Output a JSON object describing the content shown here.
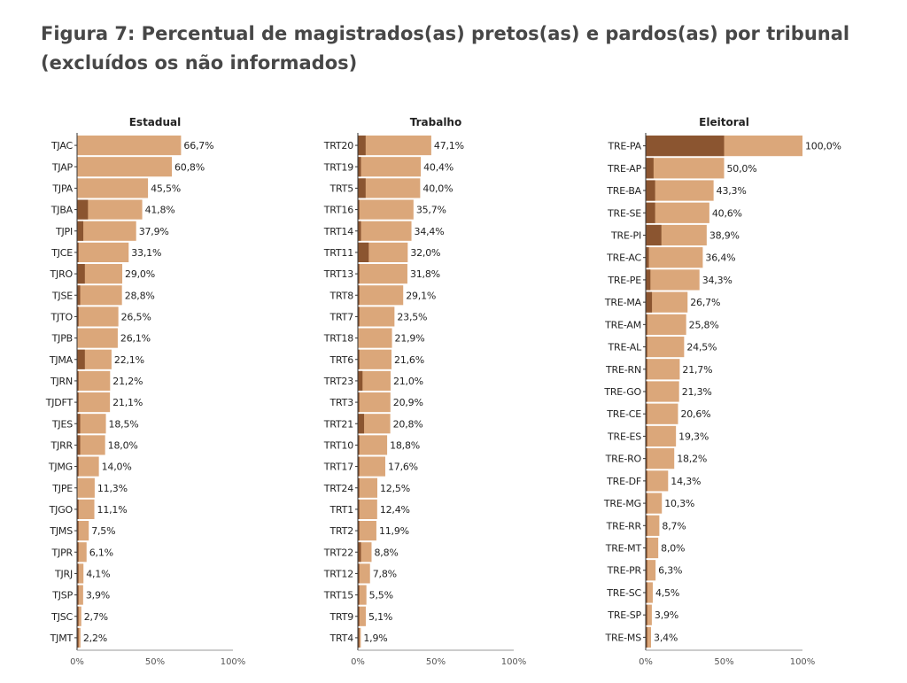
{
  "title": "Figura 7: Percentual de magistrados(as) pretos(as) e pardos(as) por tribunal (excluídos os não informados)",
  "colors": {
    "light": "#dba77a",
    "dark": "#8b5530",
    "axis": "#333333"
  },
  "chart_data": [
    {
      "type": "bar",
      "orientation": "horizontal",
      "title": "Estadual",
      "categories": [
        "TJAC",
        "TJAP",
        "TJPA",
        "TJBA",
        "TJPI",
        "TJCE",
        "TJRO",
        "TJSE",
        "TJTO",
        "TJPB",
        "TJMA",
        "TJRN",
        "TJDFT",
        "TJES",
        "TJRR",
        "TJMG",
        "TJPE",
        "TJGO",
        "TJMS",
        "TJPR",
        "TJRJ",
        "TJSP",
        "TJSC",
        "TJMT"
      ],
      "values": [
        66.7,
        60.8,
        45.5,
        41.8,
        37.9,
        33.1,
        29.0,
        28.8,
        26.5,
        26.1,
        22.1,
        21.2,
        21.1,
        18.5,
        18.0,
        14.0,
        11.3,
        11.1,
        7.5,
        6.1,
        4.1,
        3.9,
        2.7,
        2.2
      ],
      "value_labels": [
        "66,7%",
        "60,8%",
        "45,5%",
        "41,8%",
        "37,9%",
        "33,1%",
        "29,0%",
        "28,8%",
        "26,5%",
        "26,1%",
        "22,1%",
        "21,2%",
        "21,1%",
        "18,5%",
        "18,0%",
        "14,0%",
        "11,3%",
        "11,1%",
        "7,5%",
        "6,1%",
        "4,1%",
        "3,9%",
        "2,7%",
        "2,2%"
      ],
      "dark_values": [
        0,
        0,
        0,
        7,
        4,
        1,
        5,
        2,
        1,
        0,
        5,
        1,
        1,
        2,
        2,
        1,
        0,
        1,
        1,
        1,
        1,
        1,
        1,
        1
      ],
      "xlim": [
        0,
        100
      ],
      "xticks": [
        "0%",
        "50%",
        "100%"
      ]
    },
    {
      "type": "bar",
      "orientation": "horizontal",
      "title": "Trabalho",
      "categories": [
        "TRT20",
        "TRT19",
        "TRT5",
        "TRT16",
        "TRT14",
        "TRT11",
        "TRT13",
        "TRT8",
        "TRT7",
        "TRT18",
        "TRT6",
        "TRT23",
        "TRT3",
        "TRT21",
        "TRT10",
        "TRT17",
        "TRT24",
        "TRT1",
        "TRT2",
        "TRT22",
        "TRT12",
        "TRT15",
        "TRT9",
        "TRT4"
      ],
      "values": [
        47.1,
        40.4,
        40.0,
        35.7,
        34.4,
        32.0,
        31.8,
        29.1,
        23.5,
        21.9,
        21.6,
        21.0,
        20.9,
        20.8,
        18.8,
        17.6,
        12.5,
        12.4,
        11.9,
        8.8,
        7.8,
        5.5,
        5.1,
        1.9
      ],
      "value_labels": [
        "47,1%",
        "40,4%",
        "40,0%",
        "35,7%",
        "34,4%",
        "32,0%",
        "31,8%",
        "29,1%",
        "23,5%",
        "21,9%",
        "21,6%",
        "21,0%",
        "20,9%",
        "20,8%",
        "18,8%",
        "17,6%",
        "12,5%",
        "12,4%",
        "11,9%",
        "8,8%",
        "7,8%",
        "5,5%",
        "5,1%",
        "1,9%"
      ],
      "dark_values": [
        5,
        2,
        5,
        1,
        2,
        7,
        1,
        1,
        1,
        0,
        1,
        3,
        1,
        4,
        1,
        1,
        1,
        1,
        1,
        2,
        1,
        1,
        1,
        1
      ],
      "xlim": [
        0,
        100
      ],
      "xticks": [
        "0%",
        "50%",
        "100%"
      ]
    },
    {
      "type": "bar",
      "orientation": "horizontal",
      "title": "Eleitoral",
      "categories": [
        "TRE-PA",
        "TRE-AP",
        "TRE-BA",
        "TRE-SE",
        "TRE-PI",
        "TRE-AC",
        "TRE-PE",
        "TRE-MA",
        "TRE-AM",
        "TRE-AL",
        "TRE-RN",
        "TRE-GO",
        "TRE-CE",
        "TRE-ES",
        "TRE-RO",
        "TRE-DF",
        "TRE-MG",
        "TRE-RR",
        "TRE-MT",
        "TRE-PR",
        "TRE-SC",
        "TRE-SP",
        "TRE-MS"
      ],
      "values": [
        100.0,
        50.0,
        43.3,
        40.6,
        38.9,
        36.4,
        34.3,
        26.7,
        25.8,
        24.5,
        21.7,
        21.3,
        20.6,
        19.3,
        18.2,
        14.3,
        10.3,
        8.7,
        8.0,
        6.3,
        4.5,
        3.9,
        3.4
      ],
      "value_labels": [
        "100,0%",
        "50,0%",
        "43,3%",
        "40,6%",
        "38,9%",
        "36,4%",
        "34,3%",
        "26,7%",
        "25,8%",
        "24,5%",
        "21,7%",
        "21,3%",
        "20,6%",
        "19,3%",
        "18,2%",
        "14,3%",
        "10,3%",
        "8,7%",
        "8,0%",
        "6,3%",
        "4,5%",
        "3,9%",
        "3,4%"
      ],
      "dark_values": [
        50,
        5,
        6,
        6,
        10,
        2,
        3,
        4,
        1,
        1,
        1,
        1,
        1,
        1,
        1,
        1,
        1,
        1,
        1,
        1,
        1,
        1,
        1
      ],
      "xlim": [
        0,
        100
      ],
      "xticks": [
        "0%",
        "50%",
        "100%"
      ]
    }
  ]
}
